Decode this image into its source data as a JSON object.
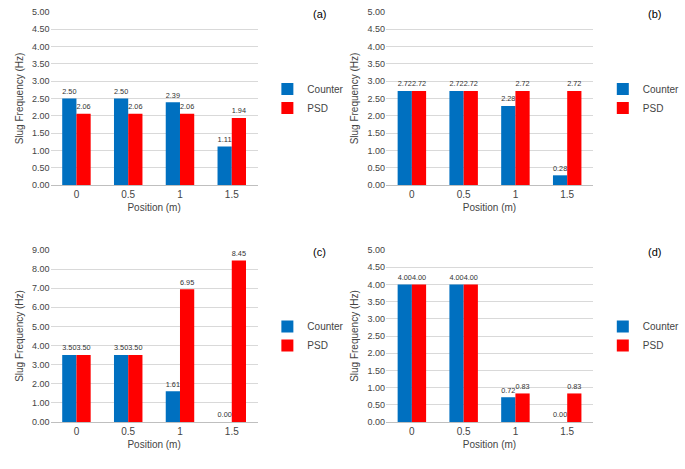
{
  "chart_data": [
    {
      "type": "bar",
      "title": "(a)",
      "x_label": "Position (m)",
      "y_label": "Slug Frequency (Hz)",
      "categories": [
        "0",
        "0.5",
        "1",
        "1.5"
      ],
      "series": [
        {
          "name": "Counter",
          "color": "#0070C0",
          "values": [
            2.5,
            2.5,
            2.39,
            1.11
          ],
          "value_labels": [
            "2.50",
            "2.50",
            "2.39",
            "1.11"
          ]
        },
        {
          "name": "PSD",
          "color": "#FF0000",
          "values": [
            2.06,
            2.06,
            2.06,
            1.94
          ],
          "value_labels": [
            "2.06",
            "2.06",
            "2.06",
            "1.94"
          ]
        }
      ],
      "ylim": [
        0,
        5
      ],
      "yticks": [
        {
          "value": 0,
          "label": "0.00"
        },
        {
          "value": 0.5,
          "label": "0.50"
        },
        {
          "value": 1,
          "label": "1.00"
        },
        {
          "value": 1.5,
          "label": "1.50"
        },
        {
          "value": 2,
          "label": "2.00"
        },
        {
          "value": 2.5,
          "label": "2.50"
        },
        {
          "value": 3,
          "label": "3.00"
        },
        {
          "value": 3.5,
          "label": "3.50"
        },
        {
          "value": 4,
          "label": "4.00"
        },
        {
          "value": 4.5,
          "label": "4.50"
        },
        {
          "value": 5,
          "label": "5.00"
        }
      ],
      "grid": true,
      "legend": "right",
      "data_labels": true
    },
    {
      "type": "bar",
      "title": "(b)",
      "x_label": "Position (m)",
      "y_label": "Slug Frequency (Hz)",
      "categories": [
        "0",
        "0.5",
        "1",
        "1.5"
      ],
      "series": [
        {
          "name": "Counter",
          "color": "#0070C0",
          "values": [
            2.72,
            2.72,
            2.28,
            0.28
          ],
          "value_labels": [
            "2.72",
            "2.72",
            "2.28",
            "0.28"
          ]
        },
        {
          "name": "PSD",
          "color": "#FF0000",
          "values": [
            2.72,
            2.72,
            2.72,
            2.72
          ],
          "value_labels": [
            "2.72",
            "2.72",
            "2.72",
            "2.72"
          ]
        }
      ],
      "ylim": [
        0,
        5
      ],
      "yticks": [
        {
          "value": 0,
          "label": "0.00"
        },
        {
          "value": 0.5,
          "label": "0.50"
        },
        {
          "value": 1,
          "label": "1.00"
        },
        {
          "value": 1.5,
          "label": "1.50"
        },
        {
          "value": 2,
          "label": "2.00"
        },
        {
          "value": 2.5,
          "label": "2.50"
        },
        {
          "value": 3,
          "label": "3.00"
        },
        {
          "value": 3.5,
          "label": "3.50"
        },
        {
          "value": 4,
          "label": "4.00"
        },
        {
          "value": 4.5,
          "label": "4.50"
        },
        {
          "value": 5,
          "label": "5.00"
        }
      ],
      "grid": true,
      "legend": "right",
      "data_labels": true
    },
    {
      "type": "bar",
      "title": "(c)",
      "x_label": "Position (m)",
      "y_label": "Slug Frequency (Hz)",
      "categories": [
        "0",
        "0.5",
        "1",
        "1.5"
      ],
      "series": [
        {
          "name": "Counter",
          "color": "#0070C0",
          "values": [
            3.5,
            3.5,
            1.61,
            0
          ],
          "value_labels": [
            "3.50",
            "3.50",
            "1.61",
            "0.00"
          ]
        },
        {
          "name": "PSD",
          "color": "#FF0000",
          "values": [
            3.5,
            3.5,
            6.95,
            8.45
          ],
          "value_labels": [
            "3.50",
            "3.50",
            "6.95",
            "8.45"
          ]
        }
      ],
      "ylim": [
        0,
        9
      ],
      "yticks": [
        {
          "value": 0,
          "label": "0.00"
        },
        {
          "value": 1,
          "label": "1.00"
        },
        {
          "value": 2,
          "label": "2.00"
        },
        {
          "value": 3,
          "label": "3.00"
        },
        {
          "value": 4,
          "label": "4.00"
        },
        {
          "value": 5,
          "label": "5.00"
        },
        {
          "value": 6,
          "label": "6.00"
        },
        {
          "value": 7,
          "label": "7.00"
        },
        {
          "value": 8,
          "label": "8.00"
        },
        {
          "value": 9,
          "label": "9.00"
        }
      ],
      "grid": true,
      "legend": "right",
      "data_labels": true
    },
    {
      "type": "bar",
      "title": "(d)",
      "x_label": "Position (m)",
      "y_label": "Slug Frequency (Hz)",
      "categories": [
        "0",
        "0.5",
        "1",
        "1.5"
      ],
      "series": [
        {
          "name": "Counter",
          "color": "#0070C0",
          "values": [
            4,
            4,
            0.72,
            0
          ],
          "value_labels": [
            "4.00",
            "4.00",
            "0.72",
            "0.00"
          ]
        },
        {
          "name": "PSD",
          "color": "#FF0000",
          "values": [
            4,
            4,
            0.83,
            0.83
          ],
          "value_labels": [
            "4.00",
            "4.00",
            "0.83",
            "0.83"
          ]
        }
      ],
      "ylim": [
        0,
        5
      ],
      "yticks": [
        {
          "value": 0,
          "label": "0.00"
        },
        {
          "value": 0.5,
          "label": "0.50"
        },
        {
          "value": 1,
          "label": "1.00"
        },
        {
          "value": 1.5,
          "label": "1.50"
        },
        {
          "value": 2,
          "label": "2.00"
        },
        {
          "value": 2.5,
          "label": "2.50"
        },
        {
          "value": 3,
          "label": "3.00"
        },
        {
          "value": 3.5,
          "label": "3.50"
        },
        {
          "value": 4,
          "label": "4.00"
        },
        {
          "value": 4.5,
          "label": "4.50"
        },
        {
          "value": 5,
          "label": "5.00"
        }
      ],
      "grid": true,
      "legend": "right",
      "data_labels": true
    }
  ]
}
